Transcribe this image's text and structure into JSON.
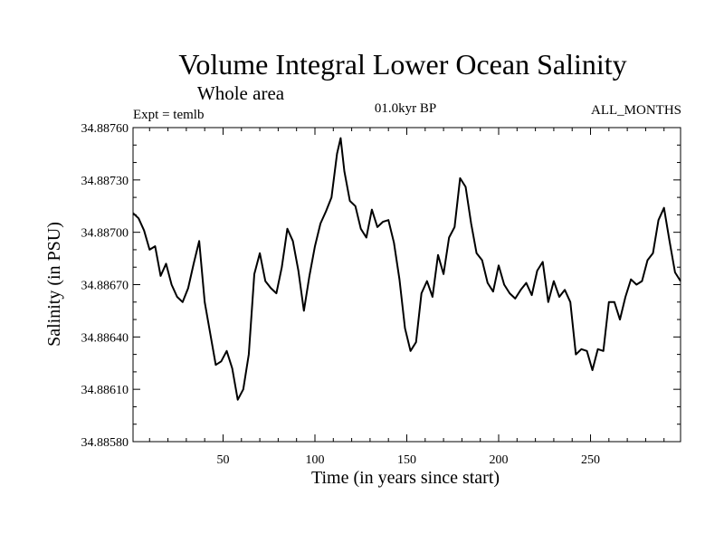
{
  "chart_data": {
    "type": "line",
    "title": "Volume Integral Lower Ocean Salinity",
    "subtitle": "Whole area",
    "annotations": {
      "experiment": "Expt = temlb",
      "period": "01.0kyr BP",
      "months": "ALL_MONTHS"
    },
    "xlabel": "Time (in years since start)",
    "ylabel": "Salinity (in PSU)",
    "xlim": [
      1,
      299
    ],
    "ylim": [
      34.8858,
      34.8876
    ],
    "xticks": [
      50,
      100,
      150,
      200,
      250
    ],
    "xtick_labels": [
      "50",
      "100",
      "150",
      "200",
      "250"
    ],
    "yticks": [
      34.8858,
      34.8861,
      34.8864,
      34.8867,
      34.887,
      34.8873,
      34.8876
    ],
    "ytick_labels": [
      "34.88580",
      "34.88610",
      "34.88640",
      "34.88670",
      "34.88700",
      "34.88730",
      "34.88760"
    ],
    "grid": false,
    "series": [
      {
        "name": "salinity",
        "x": [
          1,
          4,
          7,
          10,
          13,
          16,
          19,
          22,
          25,
          28,
          31,
          34,
          37,
          40,
          43,
          46,
          49,
          52,
          55,
          58,
          61,
          64,
          67,
          70,
          73,
          76,
          79,
          82,
          85,
          88,
          91,
          94,
          97,
          100,
          103,
          106,
          109,
          112,
          114,
          116,
          119,
          122,
          125,
          128,
          131,
          134,
          137,
          140,
          143,
          146,
          149,
          152,
          155,
          158,
          161,
          164,
          167,
          170,
          173,
          176,
          179,
          182,
          185,
          188,
          191,
          194,
          197,
          200,
          203,
          206,
          209,
          212,
          215,
          218,
          221,
          224,
          227,
          230,
          233,
          236,
          239,
          242,
          245,
          248,
          251,
          254,
          257,
          260,
          263,
          266,
          269,
          272,
          275,
          278,
          281,
          284,
          287,
          290,
          293,
          296,
          299
        ],
        "y": [
          34.88711,
          34.88708,
          34.88701,
          34.8869,
          34.88692,
          34.88675,
          34.88682,
          34.8867,
          34.88663,
          34.8866,
          34.88668,
          34.88682,
          34.88695,
          34.8866,
          34.88642,
          34.88624,
          34.88626,
          34.88632,
          34.88622,
          34.88604,
          34.8861,
          34.8863,
          34.88676,
          34.88688,
          34.88672,
          34.88668,
          34.88665,
          34.8868,
          34.88702,
          34.88695,
          34.88678,
          34.88655,
          34.88675,
          34.88692,
          34.88705,
          34.88712,
          34.8872,
          34.88745,
          34.88754,
          34.88735,
          34.88718,
          34.88715,
          34.88702,
          34.88697,
          34.88713,
          34.88703,
          34.88706,
          34.88707,
          34.88694,
          34.88673,
          34.88645,
          34.88632,
          34.88637,
          34.88665,
          34.88672,
          34.88663,
          34.88687,
          34.88676,
          34.88697,
          34.88703,
          34.88731,
          34.88726,
          34.88705,
          34.88688,
          34.88684,
          34.88671,
          34.88666,
          34.88681,
          34.8867,
          34.88665,
          34.88662,
          34.88667,
          34.88671,
          34.88664,
          34.88678,
          34.88683,
          34.8866,
          34.88672,
          34.88663,
          34.88667,
          34.8866,
          34.8863,
          34.88633,
          34.88632,
          34.88621,
          34.88633,
          34.88632,
          34.8866,
          34.8866,
          34.8865,
          34.88663,
          34.88673,
          34.8867,
          34.88672,
          34.88684,
          34.88688,
          34.88707,
          34.88714,
          34.88695,
          34.88677,
          34.88672
        ]
      }
    ]
  }
}
